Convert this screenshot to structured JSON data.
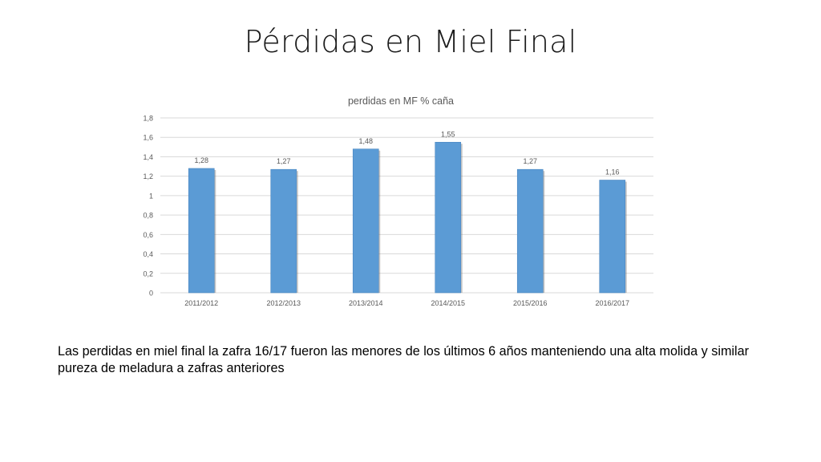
{
  "slide": {
    "title": "Pérdidas en Miel Final",
    "caption": "Las perdidas en miel final la zafra 16/17 fueron las menores de los últimos 6 años manteniendo una alta molida y similar pureza de meladura a zafras anteriores"
  },
  "chart_data": {
    "type": "bar",
    "title": "perdidas en MF % caña",
    "xlabel": "",
    "ylabel": "",
    "categories": [
      "2011/2012",
      "2012/2013",
      "2013/2014",
      "2014/2015",
      "2015/2016",
      "2016/2017"
    ],
    "values": [
      1.28,
      1.27,
      1.48,
      1.55,
      1.27,
      1.16
    ],
    "value_labels": [
      "1,28",
      "1,27",
      "1,48",
      "1,55",
      "1,27",
      "1,16"
    ],
    "ylim": [
      0,
      1.8
    ],
    "yticks": [
      0,
      0.2,
      0.4,
      0.6,
      0.8,
      1,
      1.2,
      1.4,
      1.6,
      1.8
    ],
    "ytick_labels": [
      "0",
      "0,2",
      "0,4",
      "0,6",
      "0,8",
      "1",
      "1,2",
      "1,4",
      "1,6",
      "1,8"
    ],
    "grid": true,
    "legend": "none",
    "colors": {
      "bar": "#5b9bd5",
      "bar_shadow": "#7f7f7f",
      "grid": "#d9d9d9",
      "text": "#595959"
    }
  }
}
